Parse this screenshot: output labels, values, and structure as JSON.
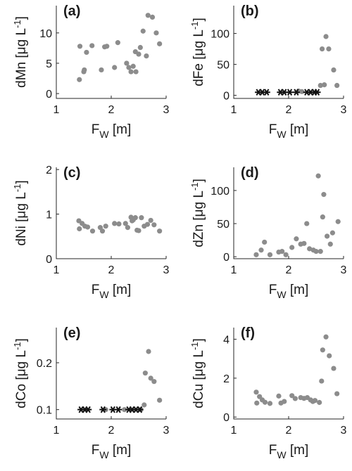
{
  "chart_data": [
    {
      "type": "scatter",
      "panel": "(a)",
      "xlabel": "F_W [m]",
      "ylabel": "dMn [μg L⁻¹]",
      "xlim": [
        1,
        3
      ],
      "ylim": [
        -0.8,
        14.5
      ],
      "xticks": [
        1,
        2,
        3
      ],
      "yticks": [
        0,
        5,
        10
      ],
      "points": [
        [
          1.42,
          2.3
        ],
        [
          1.43,
          7.8
        ],
        [
          1.5,
          3.6
        ],
        [
          1.51,
          3.9
        ],
        [
          1.55,
          6.8
        ],
        [
          1.65,
          7.9
        ],
        [
          1.82,
          3.9
        ],
        [
          1.88,
          7.7
        ],
        [
          1.92,
          7.8
        ],
        [
          2.06,
          4.3
        ],
        [
          2.12,
          8.4
        ],
        [
          2.28,
          5.0
        ],
        [
          2.32,
          4.3
        ],
        [
          2.36,
          3.6
        ],
        [
          2.4,
          4.5
        ],
        [
          2.44,
          6.9
        ],
        [
          2.45,
          3.6
        ],
        [
          2.5,
          6.5
        ],
        [
          2.53,
          7.6
        ],
        [
          2.58,
          10.3
        ],
        [
          2.64,
          6.2
        ],
        [
          2.67,
          12.9
        ],
        [
          2.75,
          12.6
        ],
        [
          2.82,
          10.0
        ],
        [
          2.88,
          8.2
        ]
      ],
      "censored": []
    },
    {
      "type": "scatter",
      "panel": "(b)",
      "xlabel": "F_W [m]",
      "ylabel": "dFe [μg L⁻¹]",
      "xlim": [
        1,
        3
      ],
      "ylim": [
        -5,
        145
      ],
      "xticks": [
        1,
        2,
        3
      ],
      "yticks": [
        0,
        50,
        100
      ],
      "points": [
        [
          2.18,
          7
        ],
        [
          2.24,
          6
        ],
        [
          2.58,
          16
        ],
        [
          2.61,
          75
        ],
        [
          2.65,
          17
        ],
        [
          2.68,
          95
        ],
        [
          2.73,
          75
        ],
        [
          2.82,
          41
        ],
        [
          2.88,
          16
        ]
      ],
      "censored": [
        [
          1.45,
          5
        ],
        [
          1.52,
          5
        ],
        [
          1.6,
          5
        ],
        [
          1.85,
          5
        ],
        [
          1.92,
          5
        ],
        [
          2.02,
          5
        ],
        [
          2.14,
          5
        ],
        [
          2.33,
          5
        ],
        [
          2.4,
          5
        ],
        [
          2.47,
          5
        ],
        [
          2.52,
          5
        ]
      ]
    },
    {
      "type": "scatter",
      "panel": "(c)",
      "xlabel": "F_W [m]",
      "ylabel": "dNi [μg L⁻¹]",
      "xlim": [
        1,
        3
      ],
      "ylim": [
        0,
        2.05
      ],
      "xticks": [
        1,
        2,
        3
      ],
      "yticks": [
        0,
        1,
        2
      ],
      "points": [
        [
          1.41,
          0.85
        ],
        [
          1.42,
          0.67
        ],
        [
          1.47,
          0.79
        ],
        [
          1.52,
          0.73
        ],
        [
          1.57,
          0.71
        ],
        [
          1.66,
          0.62
        ],
        [
          1.8,
          0.7
        ],
        [
          1.84,
          0.62
        ],
        [
          1.9,
          0.73
        ],
        [
          2.06,
          0.79
        ],
        [
          2.14,
          0.78
        ],
        [
          2.26,
          0.79
        ],
        [
          2.3,
          0.7
        ],
        [
          2.36,
          0.93
        ],
        [
          2.38,
          0.85
        ],
        [
          2.4,
          0.87
        ],
        [
          2.44,
          0.92
        ],
        [
          2.47,
          0.64
        ],
        [
          2.5,
          0.63
        ],
        [
          2.55,
          0.92
        ],
        [
          2.6,
          0.73
        ],
        [
          2.66,
          0.77
        ],
        [
          2.72,
          0.86
        ],
        [
          2.78,
          0.76
        ],
        [
          2.88,
          0.62
        ]
      ],
      "censored": []
    },
    {
      "type": "scatter",
      "panel": "(d)",
      "xlabel": "F_W [m]",
      "ylabel": "dZn [μg L⁻¹]",
      "xlim": [
        1,
        3
      ],
      "ylim": [
        -3,
        135
      ],
      "xticks": [
        1,
        2,
        3
      ],
      "yticks": [
        0,
        50,
        100
      ],
      "points": [
        [
          1.41,
          3
        ],
        [
          1.5,
          10
        ],
        [
          1.56,
          22
        ],
        [
          1.66,
          3
        ],
        [
          1.82,
          7
        ],
        [
          1.88,
          8
        ],
        [
          1.95,
          3
        ],
        [
          2.06,
          14
        ],
        [
          2.14,
          27
        ],
        [
          2.22,
          19
        ],
        [
          2.28,
          20
        ],
        [
          2.33,
          50
        ],
        [
          2.38,
          12
        ],
        [
          2.45,
          10
        ],
        [
          2.5,
          8
        ],
        [
          2.54,
          122
        ],
        [
          2.58,
          8
        ],
        [
          2.62,
          60
        ],
        [
          2.64,
          94
        ],
        [
          2.7,
          31
        ],
        [
          2.76,
          19
        ],
        [
          2.8,
          36
        ],
        [
          2.9,
          53
        ]
      ],
      "censored": []
    },
    {
      "type": "scatter",
      "panel": "(e)",
      "xlabel": "F_W [m]",
      "ylabel": "dCo [μg L⁻¹]",
      "xlim": [
        1,
        3
      ],
      "ylim": [
        0.08,
        0.275
      ],
      "xticks": [
        1,
        2,
        3
      ],
      "yticks": [
        0.1,
        0.2
      ],
      "points": [
        [
          1.9,
          0.1
        ],
        [
          2.24,
          0.1
        ],
        [
          2.54,
          0.1
        ],
        [
          2.6,
          0.11
        ],
        [
          2.62,
          0.178
        ],
        [
          2.68,
          0.224
        ],
        [
          2.72,
          0.167
        ],
        [
          2.78,
          0.16
        ],
        [
          2.88,
          0.12
        ]
      ],
      "censored": [
        [
          1.45,
          0.1
        ],
        [
          1.52,
          0.1
        ],
        [
          1.58,
          0.1
        ],
        [
          1.85,
          0.1
        ],
        [
          2.03,
          0.1
        ],
        [
          2.13,
          0.1
        ],
        [
          2.32,
          0.1
        ],
        [
          2.38,
          0.1
        ],
        [
          2.45,
          0.1
        ],
        [
          2.52,
          0.1
        ]
      ]
    },
    {
      "type": "scatter",
      "panel": "(f)",
      "xlabel": "F_W [m]",
      "ylabel": "dCu [μg L⁻¹]",
      "xlim": [
        1,
        3
      ],
      "ylim": [
        -0.1,
        4.6
      ],
      "xticks": [
        1,
        2,
        3
      ],
      "yticks": [
        0,
        2,
        4
      ],
      "points": [
        [
          1.41,
          1.28
        ],
        [
          1.42,
          0.72
        ],
        [
          1.47,
          1.05
        ],
        [
          1.52,
          0.88
        ],
        [
          1.57,
          0.76
        ],
        [
          1.66,
          0.7
        ],
        [
          1.82,
          1.08
        ],
        [
          1.86,
          0.72
        ],
        [
          1.92,
          0.8
        ],
        [
          2.06,
          1.1
        ],
        [
          2.12,
          0.95
        ],
        [
          2.22,
          1.0
        ],
        [
          2.28,
          0.96
        ],
        [
          2.34,
          1.0
        ],
        [
          2.4,
          0.88
        ],
        [
          2.44,
          0.8
        ],
        [
          2.48,
          0.85
        ],
        [
          2.56,
          0.75
        ],
        [
          2.6,
          1.85
        ],
        [
          2.62,
          3.45
        ],
        [
          2.68,
          4.12
        ],
        [
          2.74,
          3.15
        ],
        [
          2.82,
          2.5
        ],
        [
          2.88,
          1.2
        ]
      ],
      "censored": []
    }
  ],
  "colors": {
    "dot": "#8c8c8c",
    "censored": "#111111",
    "axis": "#262626"
  }
}
